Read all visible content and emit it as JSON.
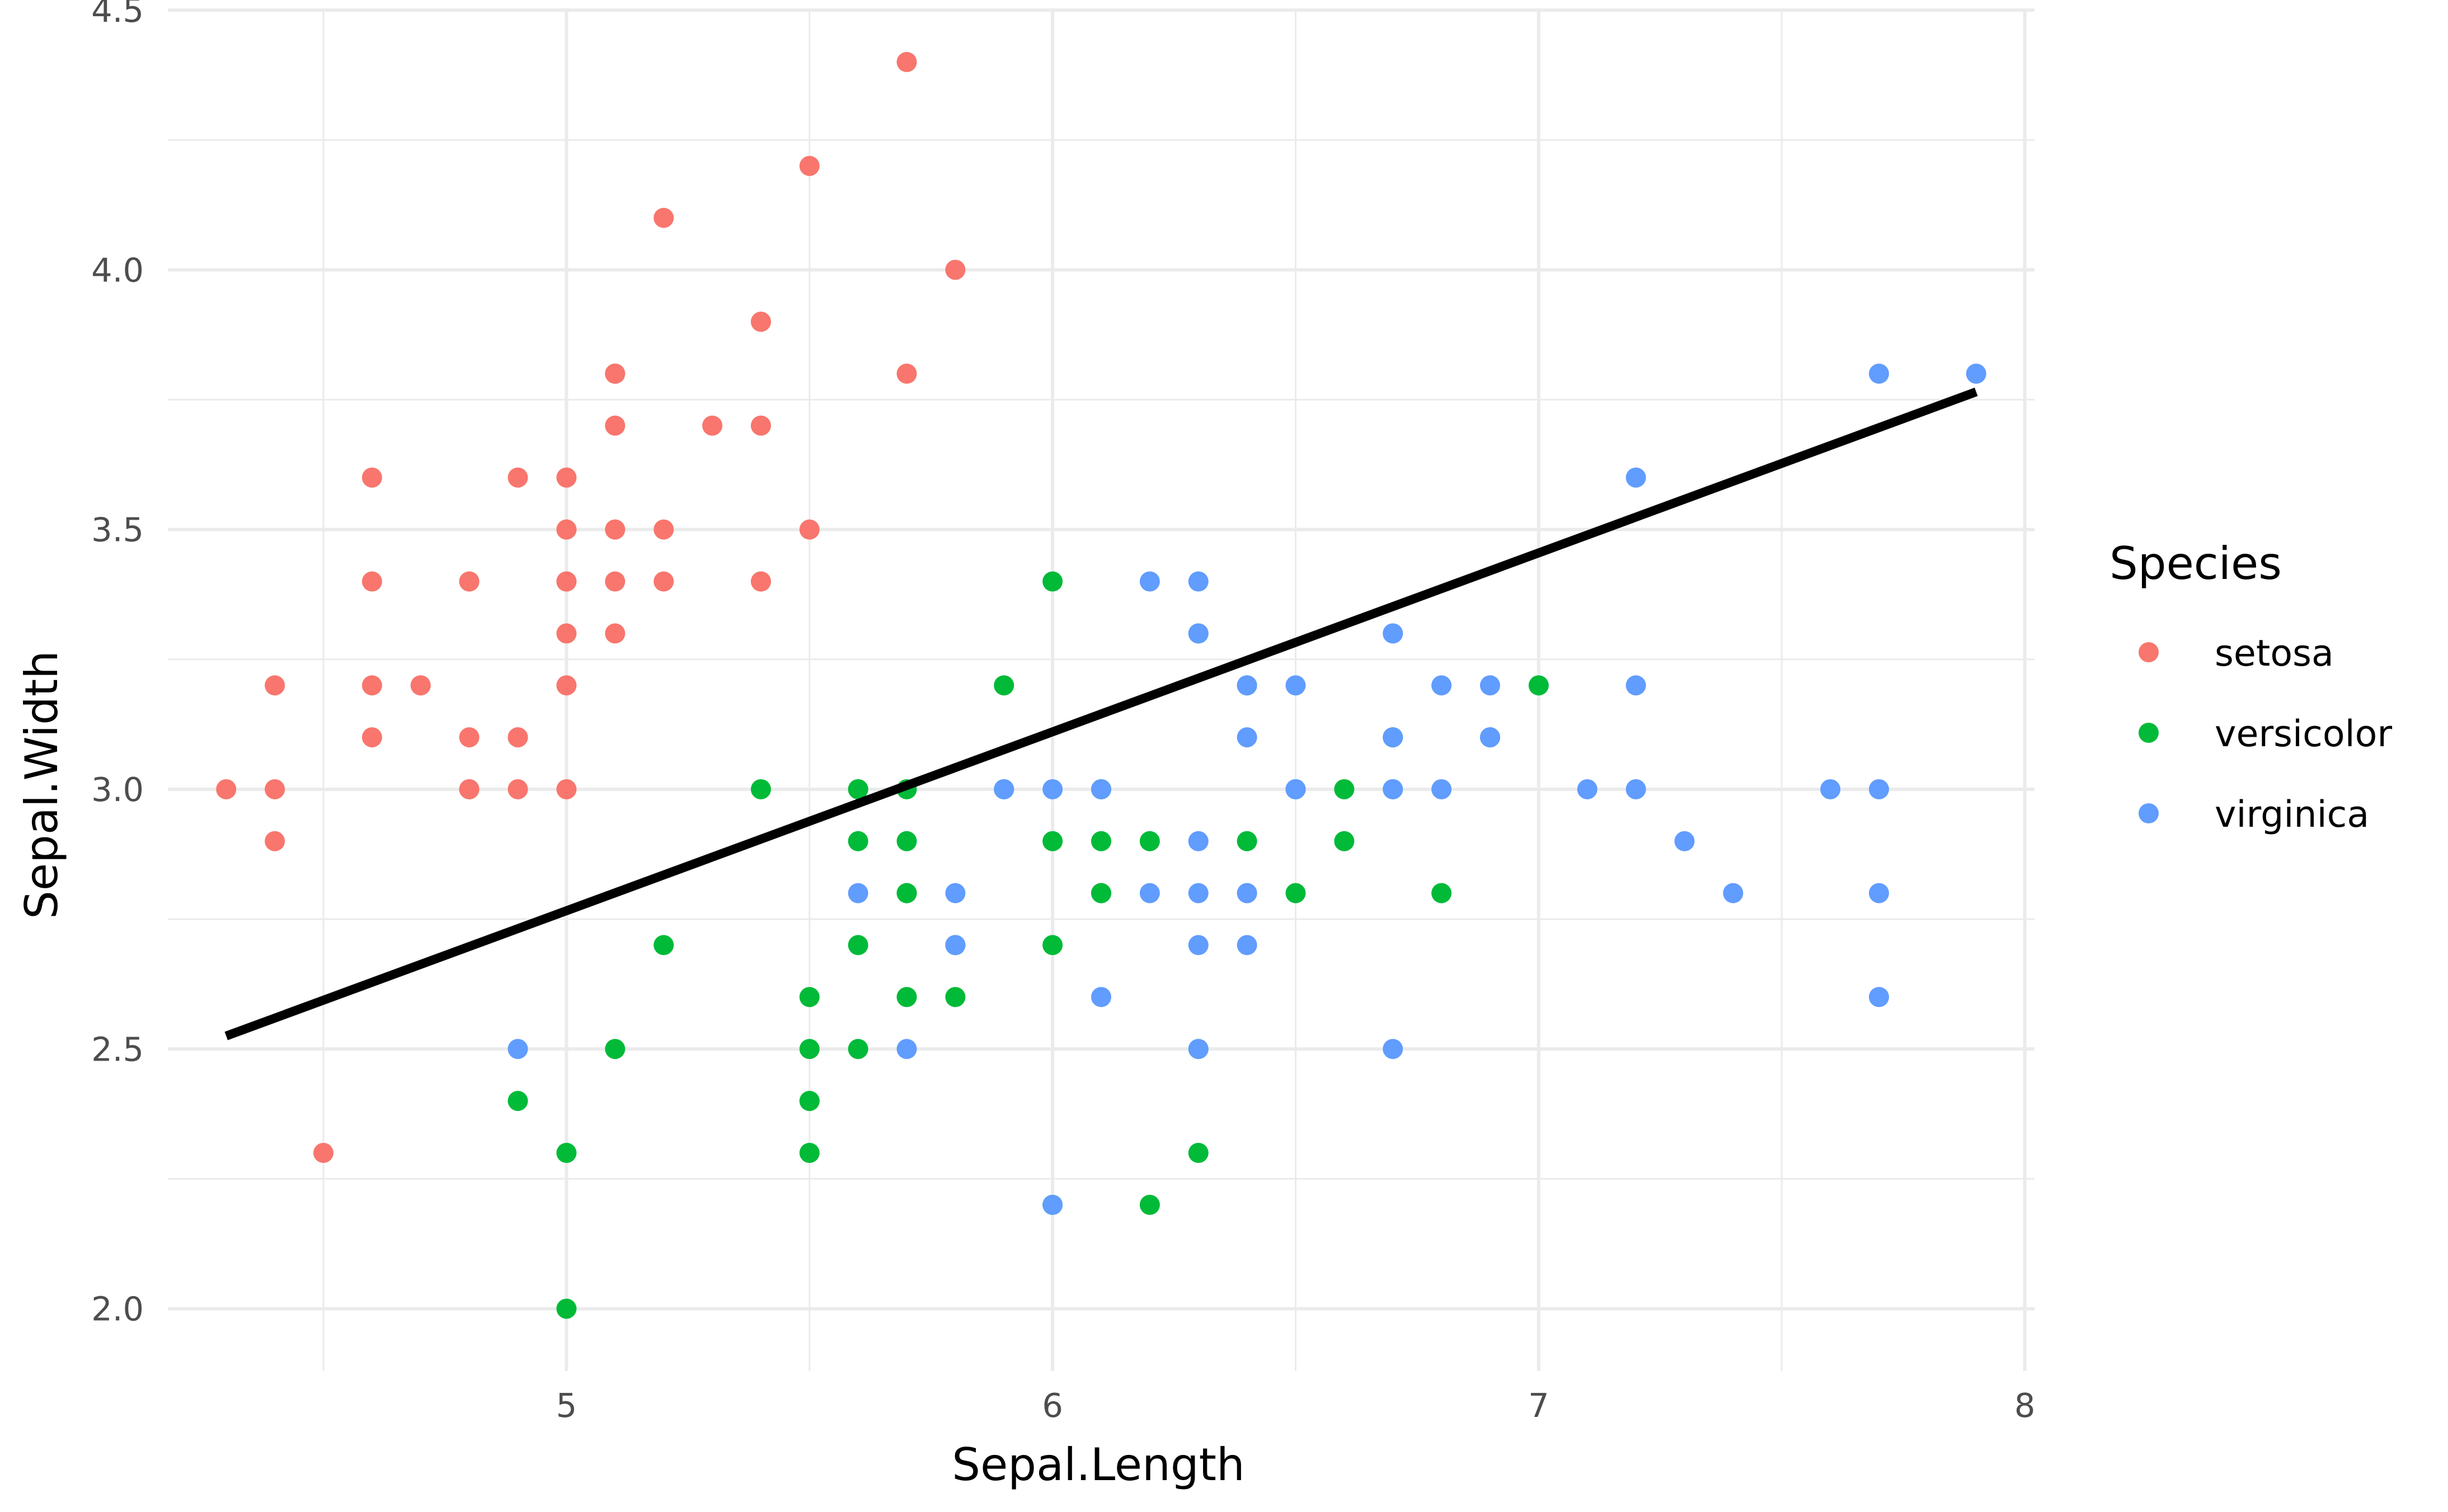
{
  "chart_data": {
    "type": "scatter",
    "xlabel": "Sepal.Length",
    "ylabel": "Sepal.Width",
    "xlim": [
      4.18,
      8.02
    ],
    "ylim": [
      1.88,
      4.5
    ],
    "x_ticks": [
      5,
      6,
      7,
      8
    ],
    "x_tick_labels": [
      "5",
      "6",
      "7",
      "8"
    ],
    "x_minor_ticks": [
      4.5,
      5.5,
      6.5,
      7.5
    ],
    "y_ticks": [
      2.0,
      2.5,
      3.0,
      3.5,
      4.0,
      4.5
    ],
    "y_tick_labels": [
      "2.0",
      "2.5",
      "3.0",
      "3.5",
      "4.0",
      "4.5"
    ],
    "y_minor_ticks": [
      2.25,
      2.75,
      3.25,
      3.75,
      4.25
    ],
    "grid": true,
    "legend": {
      "title": "Species",
      "placement": "right",
      "entries": [
        "setosa",
        "versicolor",
        "virginica"
      ]
    },
    "colors": {
      "setosa": "#F8766D",
      "versicolor": "#00BA38",
      "virginica": "#619CFF"
    },
    "trend_line": {
      "x": [
        4.3,
        7.9
      ],
      "y": [
        2.525,
        3.765
      ],
      "color": "#000000"
    },
    "series": [
      {
        "name": "setosa",
        "points": [
          [
            5.1,
            3.5
          ],
          [
            4.9,
            3.0
          ],
          [
            4.7,
            3.2
          ],
          [
            4.6,
            3.1
          ],
          [
            5.0,
            3.6
          ],
          [
            5.4,
            3.9
          ],
          [
            4.6,
            3.4
          ],
          [
            5.0,
            3.4
          ],
          [
            4.4,
            2.9
          ],
          [
            4.9,
            3.1
          ],
          [
            5.4,
            3.7
          ],
          [
            4.8,
            3.4
          ],
          [
            4.8,
            3.0
          ],
          [
            4.3,
            3.0
          ],
          [
            5.8,
            4.0
          ],
          [
            5.7,
            4.4
          ],
          [
            5.4,
            3.9
          ],
          [
            5.1,
            3.5
          ],
          [
            5.7,
            3.8
          ],
          [
            5.1,
            3.8
          ],
          [
            5.4,
            3.4
          ],
          [
            5.1,
            3.7
          ],
          [
            4.6,
            3.6
          ],
          [
            5.1,
            3.3
          ],
          [
            4.8,
            3.4
          ],
          [
            5.0,
            3.0
          ],
          [
            5.0,
            3.4
          ],
          [
            5.2,
            3.5
          ],
          [
            5.2,
            3.4
          ],
          [
            4.7,
            3.2
          ],
          [
            4.8,
            3.1
          ],
          [
            5.4,
            3.4
          ],
          [
            5.2,
            4.1
          ],
          [
            5.5,
            4.2
          ],
          [
            4.9,
            3.1
          ],
          [
            5.0,
            3.2
          ],
          [
            5.5,
            3.5
          ],
          [
            4.9,
            3.6
          ],
          [
            4.4,
            3.0
          ],
          [
            5.1,
            3.4
          ],
          [
            5.0,
            3.5
          ],
          [
            4.5,
            2.3
          ],
          [
            4.4,
            3.2
          ],
          [
            5.0,
            3.5
          ],
          [
            5.1,
            3.8
          ],
          [
            4.8,
            3.0
          ],
          [
            5.1,
            3.8
          ],
          [
            4.6,
            3.2
          ],
          [
            5.3,
            3.7
          ],
          [
            5.0,
            3.3
          ]
        ]
      },
      {
        "name": "versicolor",
        "points": [
          [
            7.0,
            3.2
          ],
          [
            6.4,
            3.2
          ],
          [
            6.9,
            3.1
          ],
          [
            5.5,
            2.3
          ],
          [
            6.5,
            2.8
          ],
          [
            5.7,
            2.8
          ],
          [
            6.3,
            3.3
          ],
          [
            4.9,
            2.4
          ],
          [
            6.6,
            2.9
          ],
          [
            5.2,
            2.7
          ],
          [
            5.0,
            2.0
          ],
          [
            5.9,
            3.0
          ],
          [
            6.0,
            2.2
          ],
          [
            6.1,
            2.9
          ],
          [
            5.6,
            2.9
          ],
          [
            6.7,
            3.1
          ],
          [
            5.6,
            3.0
          ],
          [
            5.8,
            2.7
          ],
          [
            6.2,
            2.2
          ],
          [
            5.6,
            2.5
          ],
          [
            5.9,
            3.2
          ],
          [
            6.1,
            2.8
          ],
          [
            6.3,
            2.5
          ],
          [
            6.1,
            2.8
          ],
          [
            6.4,
            2.9
          ],
          [
            6.6,
            3.0
          ],
          [
            6.8,
            2.8
          ],
          [
            6.7,
            3.0
          ],
          [
            6.0,
            2.9
          ],
          [
            5.7,
            2.6
          ],
          [
            5.5,
            2.4
          ],
          [
            5.5,
            2.4
          ],
          [
            5.8,
            2.7
          ],
          [
            6.0,
            2.7
          ],
          [
            5.4,
            3.0
          ],
          [
            6.0,
            3.4
          ],
          [
            6.7,
            3.1
          ],
          [
            6.3,
            2.3
          ],
          [
            5.6,
            3.0
          ],
          [
            5.5,
            2.5
          ],
          [
            5.5,
            2.6
          ],
          [
            6.1,
            3.0
          ],
          [
            5.8,
            2.6
          ],
          [
            5.0,
            2.3
          ],
          [
            5.6,
            2.7
          ],
          [
            5.7,
            3.0
          ],
          [
            5.7,
            2.9
          ],
          [
            6.2,
            2.9
          ],
          [
            5.1,
            2.5
          ],
          [
            5.7,
            2.8
          ]
        ]
      },
      {
        "name": "virginica",
        "points": [
          [
            6.3,
            3.3
          ],
          [
            5.8,
            2.7
          ],
          [
            7.1,
            3.0
          ],
          [
            6.3,
            2.9
          ],
          [
            6.5,
            3.0
          ],
          [
            7.6,
            3.0
          ],
          [
            4.9,
            2.5
          ],
          [
            7.3,
            2.9
          ],
          [
            6.7,
            2.5
          ],
          [
            7.2,
            3.6
          ],
          [
            6.5,
            3.2
          ],
          [
            6.4,
            2.7
          ],
          [
            6.8,
            3.0
          ],
          [
            5.7,
            2.5
          ],
          [
            5.8,
            2.8
          ],
          [
            6.4,
            3.2
          ],
          [
            6.5,
            3.0
          ],
          [
            7.7,
            3.8
          ],
          [
            7.7,
            2.6
          ],
          [
            6.0,
            2.2
          ],
          [
            6.9,
            3.2
          ],
          [
            5.6,
            2.8
          ],
          [
            7.7,
            2.8
          ],
          [
            6.3,
            2.7
          ],
          [
            6.7,
            3.3
          ],
          [
            7.2,
            3.2
          ],
          [
            6.2,
            2.8
          ],
          [
            6.1,
            3.0
          ],
          [
            6.4,
            2.8
          ],
          [
            7.2,
            3.0
          ],
          [
            7.4,
            2.8
          ],
          [
            7.9,
            3.8
          ],
          [
            6.4,
            2.8
          ],
          [
            6.3,
            2.8
          ],
          [
            6.1,
            2.6
          ],
          [
            7.7,
            3.0
          ],
          [
            6.3,
            3.4
          ],
          [
            6.4,
            3.1
          ],
          [
            6.0,
            3.0
          ],
          [
            6.9,
            3.1
          ],
          [
            6.7,
            3.1
          ],
          [
            6.9,
            3.1
          ],
          [
            5.8,
            2.7
          ],
          [
            6.8,
            3.2
          ],
          [
            6.7,
            3.3
          ],
          [
            6.7,
            3.0
          ],
          [
            6.3,
            2.5
          ],
          [
            6.5,
            3.0
          ],
          [
            6.2,
            3.4
          ],
          [
            5.9,
            3.0
          ]
        ]
      }
    ]
  }
}
